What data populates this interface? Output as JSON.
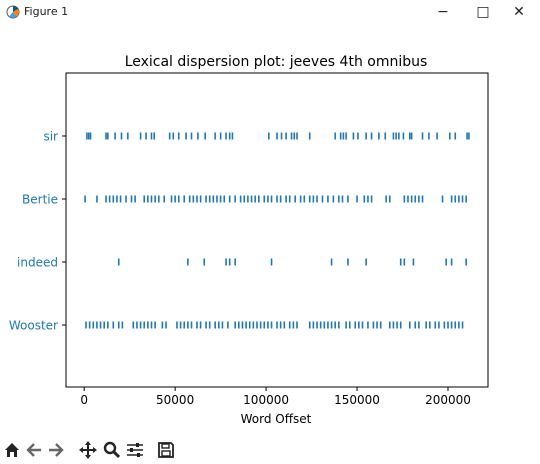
{
  "window": {
    "title": "Figure 1",
    "minimize_glyph": "−",
    "maximize_glyph": "□",
    "close_glyph": "✕"
  },
  "toolbar": {
    "items": [
      "home-icon",
      "back-arrow-icon",
      "forward-arrow-icon",
      "pan-icon",
      "zoom-icon",
      "configure-subplots-icon",
      "save-icon"
    ]
  },
  "chart_data": {
    "type": "scatter",
    "title": "Lexical dispersion plot: jeeves 4th omnibus",
    "xlabel": "Word Offset",
    "ylabel": "",
    "xlim": [
      -10000,
      222000
    ],
    "xticks": [
      0,
      50000,
      100000,
      150000,
      200000
    ],
    "xtick_labels": [
      "0",
      "50000",
      "100000",
      "150000",
      "200000"
    ],
    "categories": [
      "sir",
      "Bertie",
      "indeed",
      "Wooster"
    ],
    "marker": "|",
    "color": "#1f77b4",
    "label_color": "#1f77b4",
    "grid": false,
    "series": [
      {
        "name": "sir",
        "values": [
          1500,
          2500,
          3500,
          12000,
          13000,
          17000,
          20500,
          24000,
          31000,
          34000,
          37000,
          38500,
          47000,
          49000,
          52000,
          56000,
          59000,
          62500,
          66500,
          72000,
          75000,
          78000,
          80000,
          81500,
          101500,
          106000,
          108500,
          111000,
          114000,
          115500,
          117000,
          124000,
          138000,
          141000,
          142500,
          144000,
          148000,
          150500,
          155000,
          158000,
          162000,
          165500,
          170000,
          171500,
          173000,
          175500,
          179000,
          180000,
          186000,
          189500,
          194000,
          201000,
          204000,
          210500,
          211500
        ]
      },
      {
        "name": "Bertie",
        "values": [
          500,
          7000,
          12000,
          14000,
          16000,
          18000,
          20000,
          23000,
          26000,
          28000,
          33000,
          35000,
          37000,
          39000,
          41000,
          44000,
          48000,
          50000,
          52000,
          55000,
          58000,
          60000,
          62000,
          64000,
          67000,
          69000,
          71000,
          73000,
          75000,
          77000,
          80000,
          83000,
          86000,
          88000,
          90000,
          92000,
          94000,
          96000,
          99000,
          101000,
          103000,
          106000,
          108000,
          111000,
          113000,
          116000,
          119000,
          121000,
          124000,
          126000,
          128000,
          131000,
          134000,
          137000,
          140000,
          142000,
          145000,
          150000,
          154000,
          156000,
          158000,
          166000,
          168000,
          176000,
          178000,
          180000,
          182000,
          184000,
          186000,
          197000,
          202000,
          204000,
          206000,
          208000,
          210000
        ]
      },
      {
        "name": "indeed",
        "values": [
          19000,
          57000,
          66000,
          78000,
          80000,
          83000,
          103000,
          136000,
          145000,
          155000,
          174000,
          176000,
          181000,
          199000,
          202000,
          210000
        ]
      },
      {
        "name": "Wooster",
        "values": [
          1000,
          3000,
          5000,
          7000,
          9000,
          11000,
          13000,
          16000,
          19000,
          21000,
          27000,
          29000,
          31000,
          33000,
          35000,
          37000,
          39000,
          43000,
          45000,
          51000,
          53000,
          55000,
          57000,
          59000,
          62000,
          64000,
          67000,
          69000,
          72000,
          74000,
          76000,
          79000,
          83000,
          85000,
          87000,
          89000,
          91000,
          93000,
          95000,
          97000,
          99000,
          101000,
          103000,
          106000,
          108000,
          110000,
          113000,
          115000,
          117000,
          124000,
          126000,
          128000,
          130000,
          132000,
          134000,
          136000,
          138000,
          140000,
          144000,
          146000,
          149000,
          151000,
          153000,
          156000,
          159000,
          161000,
          163000,
          168000,
          170000,
          172000,
          174000,
          179000,
          182000,
          184000,
          188000,
          190000,
          193000,
          195000,
          198000,
          200000,
          202000,
          204000,
          206000,
          208000
        ]
      }
    ]
  }
}
